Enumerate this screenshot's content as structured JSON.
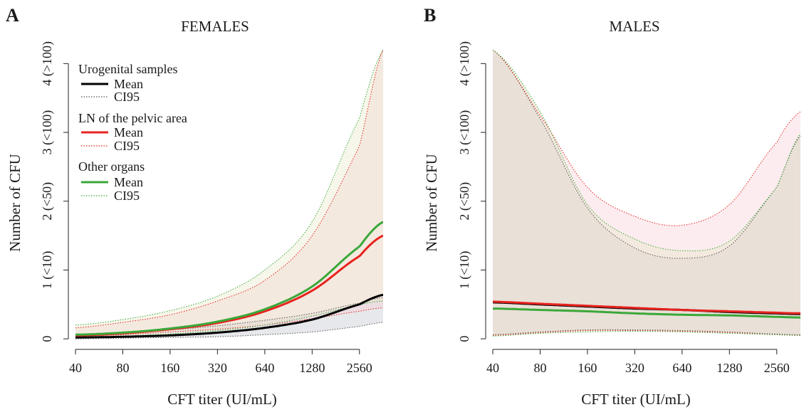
{
  "figure": {
    "colors": {
      "urogenital": "#000000",
      "pelvic_ln": "#e8231f",
      "other_organs": "#3aa83a",
      "band_urogenital": "#b9bec7",
      "band_pelvic": "#f6c8d0",
      "band_other": "#e6e6c2"
    }
  },
  "chart_data": [
    {
      "panel": "A",
      "type": "line",
      "title": "FEMALES",
      "xlabel": "CFT titer (UI/mL)",
      "ylabel": "Number of CFU",
      "x_scale": "log2",
      "x_ticks": [
        40,
        80,
        160,
        320,
        640,
        1280,
        2560
      ],
      "x_tick_labels": [
        "40",
        "80",
        "160",
        "320",
        "640",
        "1280",
        "2560"
      ],
      "xlim": [
        40,
        3620
      ],
      "y_ticks": [
        0,
        1,
        2,
        3,
        4
      ],
      "y_tick_labels": [
        "0",
        "1 (<10)",
        "2 (<50)",
        "3 (<100)",
        "4 (>100)"
      ],
      "ylim": [
        -0.05,
        4.2
      ],
      "grid": false,
      "legend_position": "top-left",
      "legend": [
        {
          "group": "Urogenital samples",
          "entries": [
            {
              "label": "Mean",
              "style": "solid"
            },
            {
              "label": "CI95",
              "style": "dotted"
            }
          ]
        },
        {
          "group": "LN of the pelvic area",
          "entries": [
            {
              "label": "Mean",
              "style": "solid"
            },
            {
              "label": "CI95",
              "style": "dotted"
            }
          ]
        },
        {
          "group": "Other organs",
          "entries": [
            {
              "label": "Mean",
              "style": "solid"
            },
            {
              "label": "CI95",
              "style": "dotted"
            }
          ]
        }
      ],
      "x": [
        40,
        80,
        160,
        320,
        640,
        1280,
        2560,
        3620
      ],
      "series": [
        {
          "key": "urogenital",
          "mean": [
            0.02,
            0.03,
            0.05,
            0.09,
            0.16,
            0.28,
            0.5,
            0.64
          ],
          "lower": [
            0.0,
            0.01,
            0.02,
            0.03,
            0.06,
            0.1,
            0.18,
            0.24
          ],
          "upper": [
            0.06,
            0.09,
            0.13,
            0.19,
            0.27,
            0.37,
            0.52,
            0.6
          ]
        },
        {
          "key": "pelvic_ln",
          "mean": [
            0.05,
            0.08,
            0.14,
            0.23,
            0.4,
            0.7,
            1.2,
            1.5
          ],
          "lower": [
            0.04,
            0.06,
            0.1,
            0.14,
            0.2,
            0.29,
            0.4,
            0.45
          ],
          "upper": [
            0.16,
            0.24,
            0.35,
            0.55,
            0.85,
            1.5,
            2.8,
            4.2
          ]
        },
        {
          "key": "other_organs",
          "mean": [
            0.06,
            0.09,
            0.15,
            0.25,
            0.43,
            0.76,
            1.34,
            1.7
          ],
          "lower": [
            0.03,
            0.04,
            0.07,
            0.12,
            0.2,
            0.33,
            0.49,
            0.55
          ],
          "upper": [
            0.2,
            0.28,
            0.41,
            0.62,
            1.0,
            1.7,
            3.2,
            4.2
          ]
        }
      ]
    },
    {
      "panel": "B",
      "type": "line",
      "title": "MALES",
      "xlabel": "CFT titer (UI/mL)",
      "ylabel": "Number of CFU",
      "x_scale": "log2",
      "x_ticks": [
        40,
        80,
        160,
        320,
        640,
        1280,
        2560
      ],
      "x_tick_labels": [
        "40",
        "80",
        "160",
        "320",
        "640",
        "1280",
        "2560"
      ],
      "xlim": [
        40,
        3620
      ],
      "y_ticks": [
        0,
        1,
        2,
        3,
        4
      ],
      "y_tick_labels": [
        "0",
        "1 (<10)",
        "2 (<50)",
        "3 (<100)",
        "4 (>100)"
      ],
      "ylim": [
        -0.05,
        4.2
      ],
      "grid": false,
      "x": [
        40,
        80,
        160,
        320,
        640,
        1280,
        2560,
        3620
      ],
      "series": [
        {
          "key": "urogenital",
          "mean": [
            0.53,
            0.5,
            0.47,
            0.44,
            0.42,
            0.39,
            0.37,
            0.36
          ],
          "lower": [
            0.06,
            0.1,
            0.13,
            0.13,
            0.12,
            0.1,
            0.07,
            0.06
          ],
          "upper": [
            4.2,
            3.2,
            1.9,
            1.32,
            1.17,
            1.35,
            2.2,
            2.95
          ]
        },
        {
          "key": "pelvic_ln",
          "mean": [
            0.54,
            0.51,
            0.48,
            0.45,
            0.42,
            0.4,
            0.38,
            0.37
          ],
          "lower": [
            0.05,
            0.09,
            0.12,
            0.12,
            0.11,
            0.09,
            0.06,
            0.05
          ],
          "upper": [
            4.2,
            3.25,
            2.2,
            1.78,
            1.65,
            1.95,
            2.85,
            3.3
          ]
        },
        {
          "key": "other_organs",
          "mean": [
            0.44,
            0.42,
            0.4,
            0.37,
            0.35,
            0.34,
            0.32,
            0.31
          ],
          "lower": [
            0.04,
            0.08,
            0.1,
            0.11,
            0.1,
            0.08,
            0.06,
            0.05
          ],
          "upper": [
            4.2,
            3.3,
            1.95,
            1.45,
            1.28,
            1.42,
            2.2,
            2.98
          ]
        }
      ]
    }
  ]
}
